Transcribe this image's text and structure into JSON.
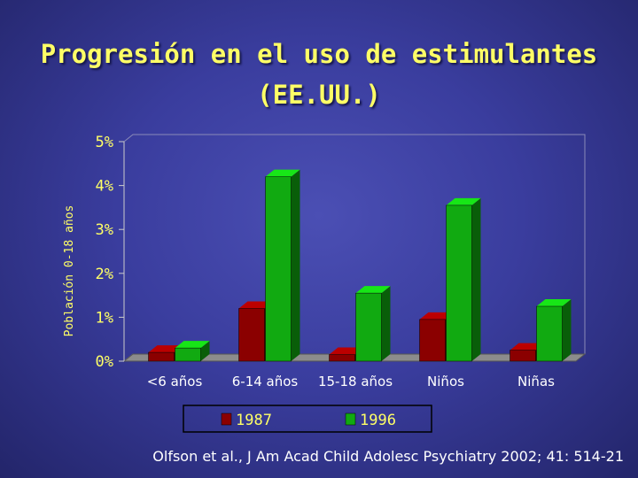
{
  "title": {
    "line1": "Progresión en el uso de estimulantes",
    "line2": "(EE.UU.)"
  },
  "citation": "Olfson et al., J Am Acad Child Adolesc Psychiatry 2002; 41: 514-21",
  "colors": {
    "background": "#3a3d9e",
    "title": "#ffff66",
    "axis_text": "#ffff66",
    "x_labels": "#ffffff",
    "series_1987": "#8b0000",
    "series_1996": "#11aa11"
  },
  "chart_data": {
    "type": "bar",
    "ylabel": "Población 0-18 años",
    "yticks": [
      "0%",
      "1%",
      "2%",
      "3%",
      "4%",
      "5%"
    ],
    "ylim": [
      0,
      5
    ],
    "categories": [
      "<6 años",
      "6-14 años",
      "15-18 años",
      "Niños",
      "Niñas"
    ],
    "series": [
      {
        "name": "1987",
        "values": [
          0.2,
          1.2,
          0.15,
          0.95,
          0.25
        ]
      },
      {
        "name": "1996",
        "values": [
          0.3,
          4.2,
          1.55,
          3.55,
          1.25
        ]
      }
    ],
    "legend_position": "bottom",
    "grid": false
  }
}
